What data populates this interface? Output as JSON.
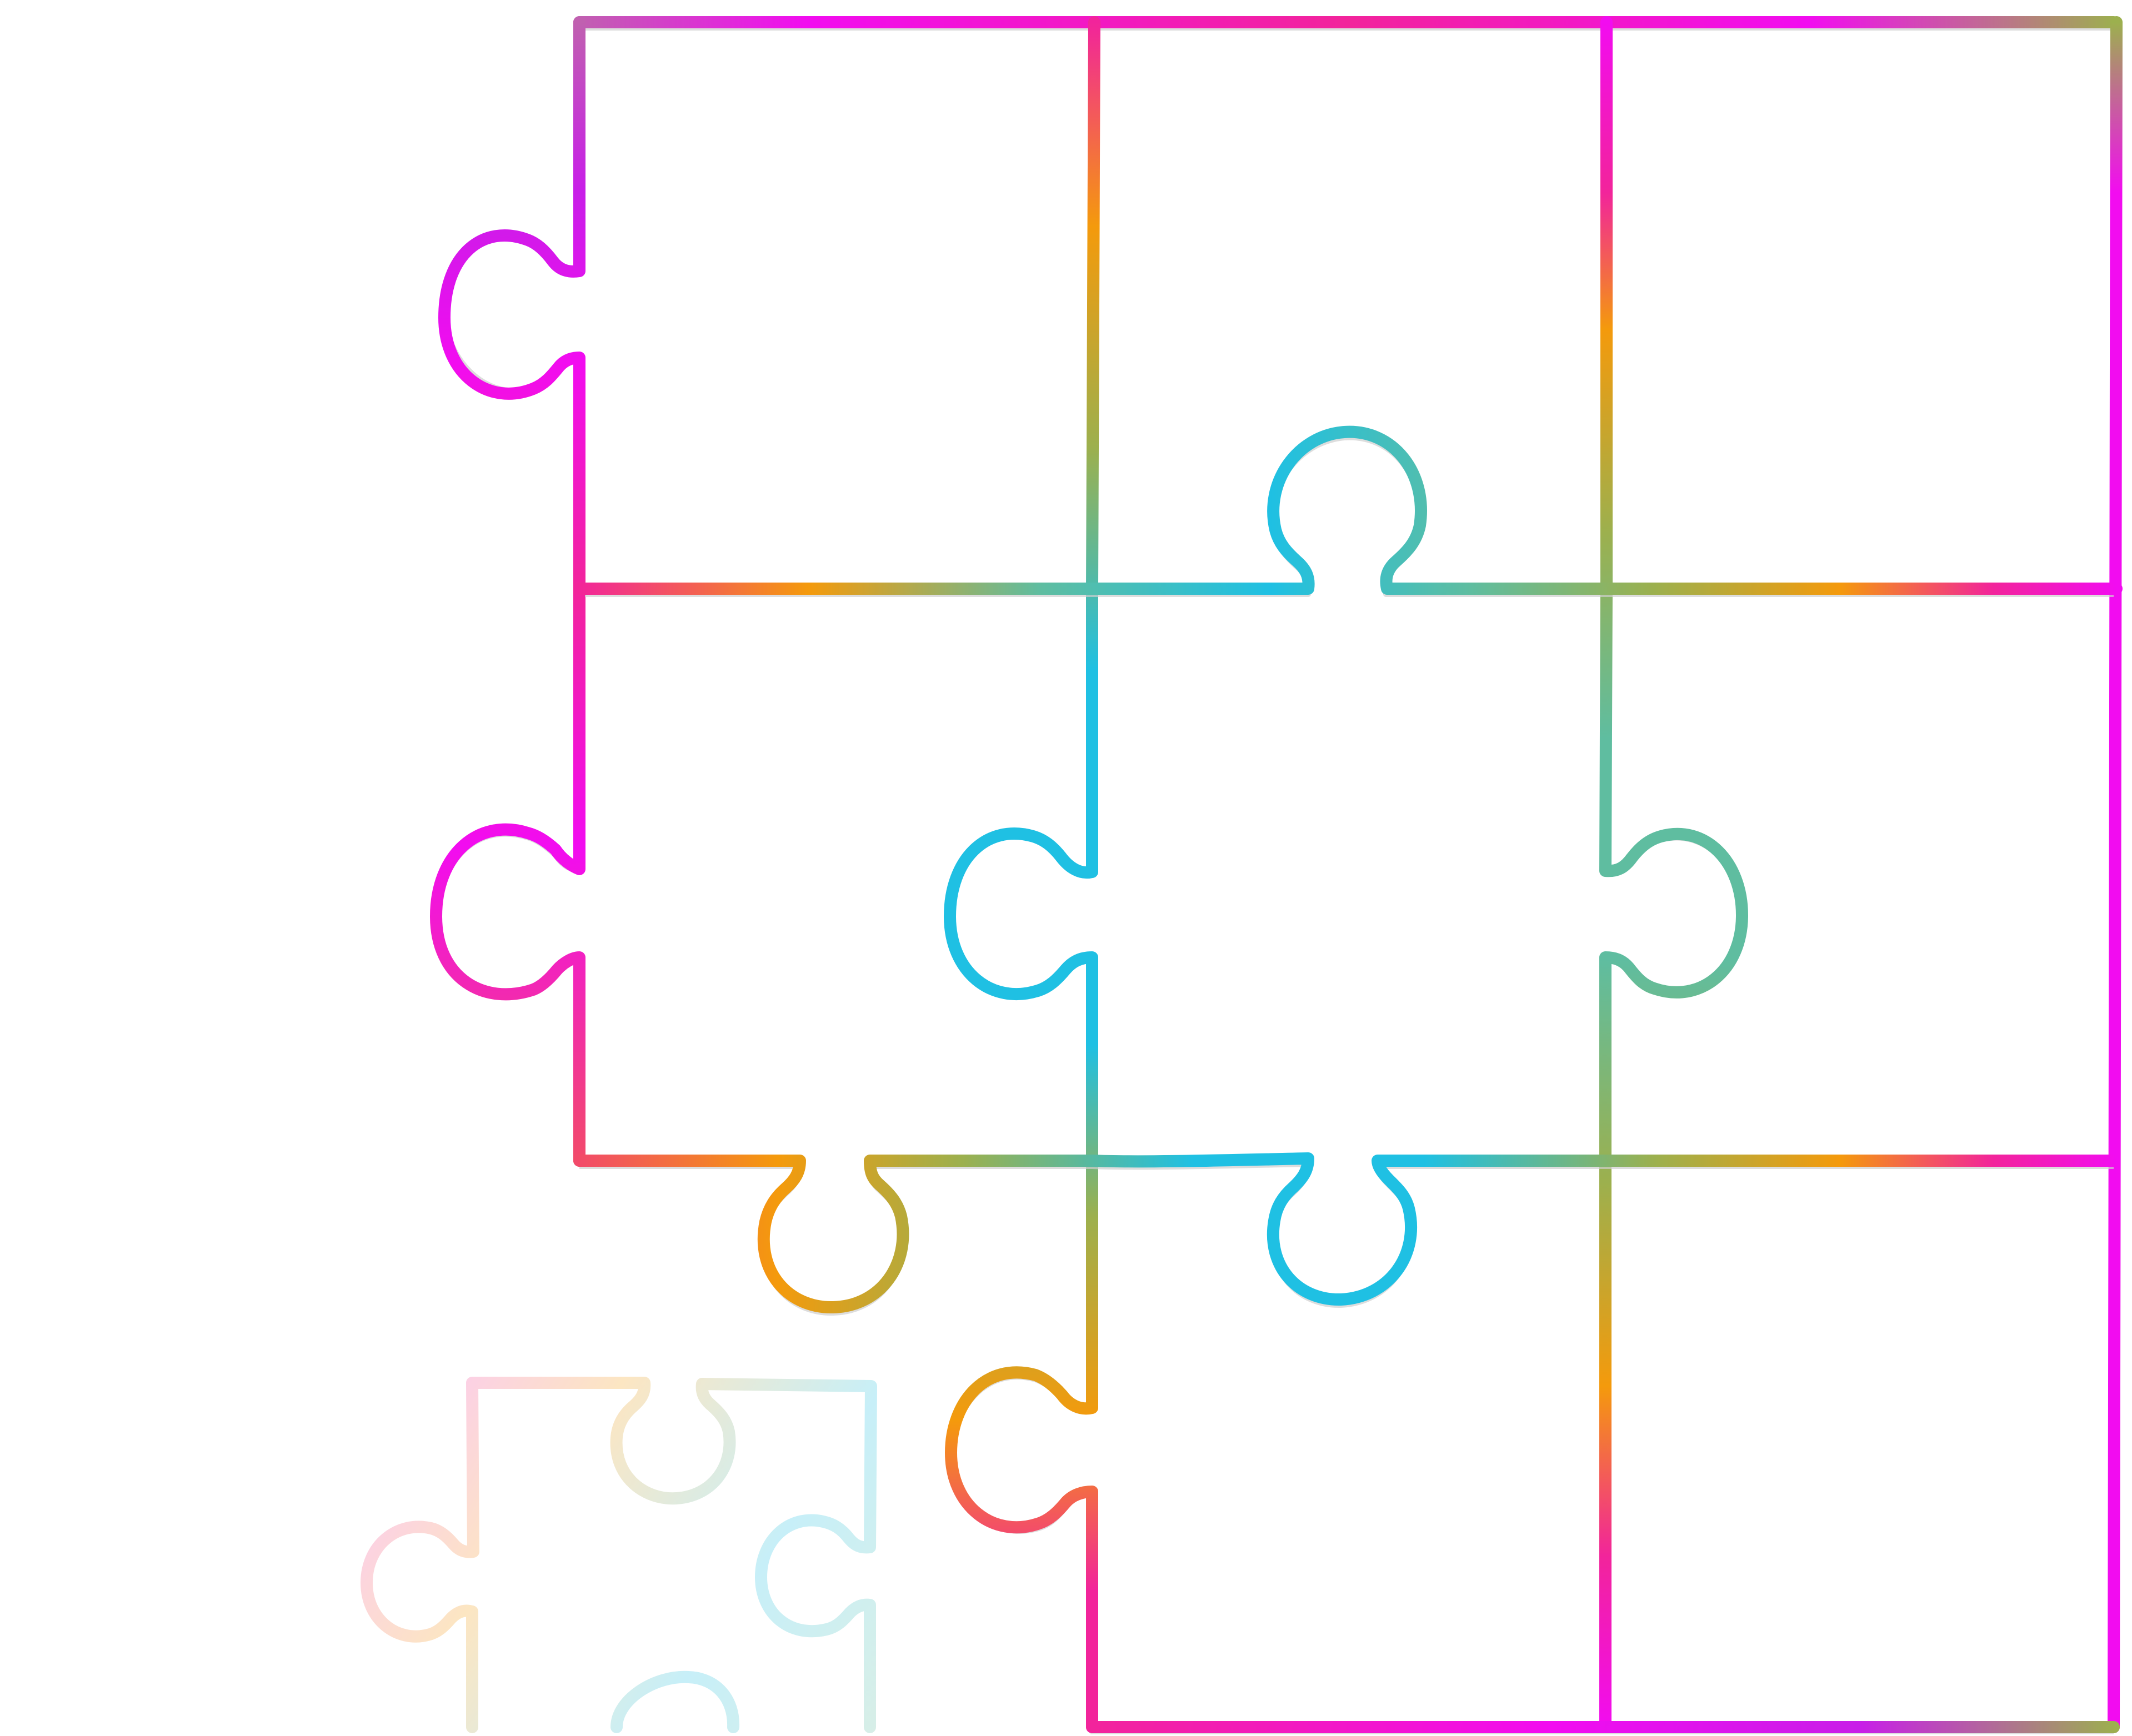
{
  "diagram": {
    "subject": "jigsaw-puzzle-outline",
    "grid": {
      "rows": 3,
      "cols": 3
    },
    "missing_piece": {
      "row": 2,
      "col": 0,
      "shown_loose": true,
      "loose_opacity": 0.25
    },
    "colors": {
      "magenta": "#f20cf0",
      "pink": "#f2249b",
      "orange": "#f49a0c",
      "olive": "#9cb04e",
      "teal": "#5fbda0",
      "cyan": "#1fc0e3",
      "shadow": "#cfcfcf"
    }
  }
}
